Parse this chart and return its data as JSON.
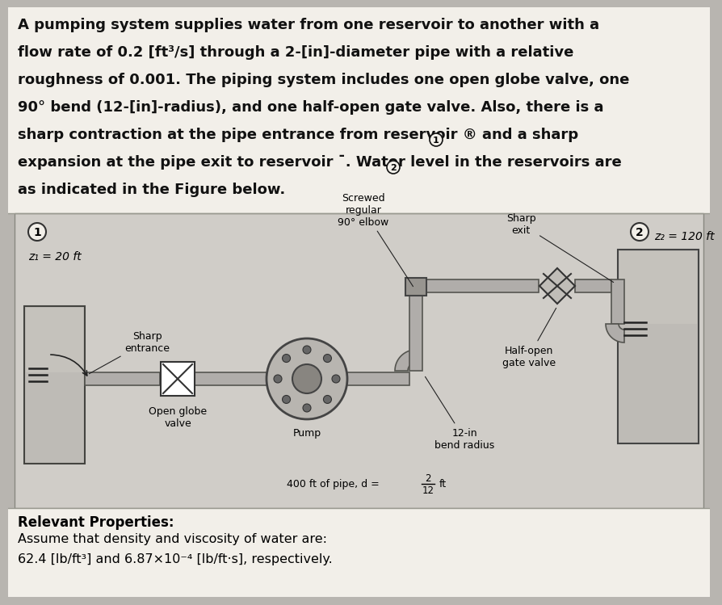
{
  "bg_color": "#c8c8c8",
  "text_area_bg": "#f0ede8",
  "diagram_bg": "#c8c8c8",
  "bottom_bg": "#e8e5e0",
  "line1": "A pumping system supplies water from one reservoir to another with a",
  "line2": "flow rate of 0.2 [ft³/s] through a 2-[in]-diameter pipe with a relative",
  "line3": "roughness of 0.001. The piping system includes one open globe valve, one",
  "line4": "90° bend (12-[in]-radius), and one half-open gate valve. Also, there is a",
  "line5": "sharp contraction at the pipe entrance from reservoir ® and a sharp",
  "line6": "expansion at the pipe exit to reservoir ¯. Water level in the reservoirs are",
  "line7": "as indicated in the Figure below.",
  "label_screwed": "Screwed\nregular\n90° elbow",
  "label_sharp_exit": "Sharp\nexit",
  "label_z2": "z₂ = 120 ft",
  "label_circle2": "2",
  "label_circle1": "1",
  "label_z1": "z₁ = 20 ft",
  "label_sharp_entrance": "Sharp\nentrance",
  "label_half_open": "Half-open\ngate valve",
  "label_12in": "12-in\nbend radius",
  "label_pump": "Pump",
  "label_open_globe": "Open globe\nvalve",
  "label_400ft": "400 ft of pipe, d =",
  "label_fraction_num": "2",
  "label_fraction_den": "12",
  "label_fraction_unit": "ft",
  "relevant_props_bold": "Relevant Properties:",
  "relevant_props_1": "Assume that density and viscosity of water are:",
  "relevant_props_2": "62.4 [lb/ft³] and 6.87×10⁻⁴ [lb/ft·s], respectively."
}
